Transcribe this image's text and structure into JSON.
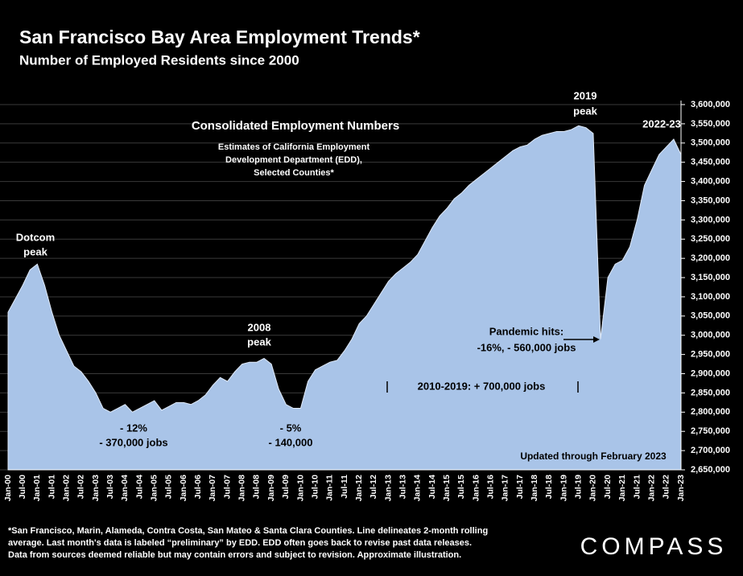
{
  "chart_data": {
    "type": "area",
    "title": "San Francisco Bay Area Employment Trends*",
    "subtitle": "Number of Employed Residents since 2000",
    "color": "#a9c4e8",
    "grid": true,
    "categories": [
      "Jan-00",
      null,
      "Jul-00",
      null,
      "Jan-01",
      null,
      "Jul-01",
      null,
      "Jan-02",
      null,
      "Jul-02",
      null,
      "Jan-03",
      null,
      "Jul-03",
      null,
      "Jan-04",
      null,
      "Jul-04",
      null,
      "Jan-05",
      null,
      "Jul-05",
      null,
      "Jan-06",
      null,
      "Jul-06",
      null,
      "Jan-07",
      null,
      "Jul-07",
      null,
      "Jan-08",
      null,
      "Jul-08",
      null,
      "Jan-09",
      null,
      "Jul-09",
      null,
      "Jan-10",
      null,
      "Jul-10",
      null,
      "Jan-11",
      null,
      "Jul-11",
      null,
      "Jan-12",
      null,
      "Jul-12",
      null,
      "Jan-13",
      null,
      "Jul-13",
      null,
      "Jan-14",
      null,
      "Jul-14",
      null,
      "Jan-15",
      null,
      "Jul-15",
      null,
      "Jan-16",
      null,
      "Jul-16",
      null,
      "Jan-17",
      null,
      "Jul-17",
      null,
      "Jan-18",
      null,
      "Jul-18",
      null,
      "Jan-19",
      null,
      "Jul-19",
      null,
      "Jan-20",
      null,
      "Jul-20",
      null,
      "Jan-21",
      null,
      "Jul-21",
      null,
      "Jan-22",
      null,
      "Jul-22",
      null,
      "Jan-23"
    ],
    "values": [
      3060000,
      3095000,
      3130000,
      3170000,
      3185000,
      3130000,
      3060000,
      3000000,
      2960000,
      2920000,
      2905000,
      2880000,
      2850000,
      2810000,
      2800000,
      2810000,
      2820000,
      2800000,
      2810000,
      2820000,
      2830000,
      2805000,
      2815000,
      2825000,
      2825000,
      2820000,
      2830000,
      2845000,
      2870000,
      2890000,
      2880000,
      2905000,
      2925000,
      2930000,
      2930000,
      2940000,
      2925000,
      2860000,
      2820000,
      2810000,
      2810000,
      2880000,
      2910000,
      2920000,
      2930000,
      2935000,
      2960000,
      2990000,
      3030000,
      3050000,
      3080000,
      3110000,
      3140000,
      3160000,
      3175000,
      3190000,
      3210000,
      3245000,
      3280000,
      3310000,
      3330000,
      3355000,
      3370000,
      3390000,
      3405000,
      3420000,
      3435000,
      3450000,
      3465000,
      3480000,
      3490000,
      3495000,
      3510000,
      3520000,
      3525000,
      3530000,
      3530000,
      3535000,
      3545000,
      3540000,
      3525000,
      2990000,
      3150000,
      3185000,
      3195000,
      3230000,
      3300000,
      3390000,
      3430000,
      3470000,
      3490000,
      3510000,
      3470000
    ],
    "ylim": [
      2650000,
      3600000
    ],
    "yticks": [
      {
        "value": 2650000,
        "label": "2,650,000"
      },
      {
        "value": 2700000,
        "label": "2,700,000"
      },
      {
        "value": 2750000,
        "label": "2,750,000"
      },
      {
        "value": 2800000,
        "label": "2,800,000"
      },
      {
        "value": 2850000,
        "label": "2,850,000"
      },
      {
        "value": 2900000,
        "label": "2,900,000"
      },
      {
        "value": 2950000,
        "label": "2,950,000"
      },
      {
        "value": 3000000,
        "label": "3,000,000"
      },
      {
        "value": 3050000,
        "label": "3,050,000"
      },
      {
        "value": 3100000,
        "label": "3,100,000"
      },
      {
        "value": 3150000,
        "label": "3,150,000"
      },
      {
        "value": 3200000,
        "label": "3,200,000"
      },
      {
        "value": 3250000,
        "label": "3,250,000"
      },
      {
        "value": 3300000,
        "label": "3,300,000"
      },
      {
        "value": 3350000,
        "label": "3,350,000"
      },
      {
        "value": 3400000,
        "label": "3,400,000"
      },
      {
        "value": 3450000,
        "label": "3,450,000"
      },
      {
        "value": 3500000,
        "label": "3,500,000"
      },
      {
        "value": 3550000,
        "label": "3,550,000"
      },
      {
        "value": 3600000,
        "label": "3,600,000"
      }
    ],
    "annotations": [
      [
        "Consolidated Employment Numbers"
      ],
      [
        "Estimates of California Employment",
        "Development Department (EDD),",
        "Selected Counties*"
      ],
      [
        "2019",
        "peak"
      ],
      [
        "2022-23"
      ],
      [
        "Dotcom",
        "peak"
      ],
      [
        "2008",
        "peak"
      ],
      [
        "- 12%",
        "- 370,000 jobs"
      ],
      [
        "- 5%",
        "- 140,000"
      ],
      [
        "Pandemic hits:",
        "-16%, - 560,000 jobs"
      ],
      [
        "2010-2019: + 700,000 jobs"
      ],
      [
        "Updated through February 2023"
      ]
    ],
    "footnote": [
      "*San Francisco, Marin, Alameda, Contra Costa, San Mateo & Santa Clara Counties. Line delineates 2-month rolling",
      "average. Last month's data is labeled “preliminary” by EDD. EDD often goes back to revise past data releases.",
      "Data from sources deemed reliable but may contain errors and subject to revision. Approximate illustration."
    ],
    "logo": "COMPASS"
  }
}
